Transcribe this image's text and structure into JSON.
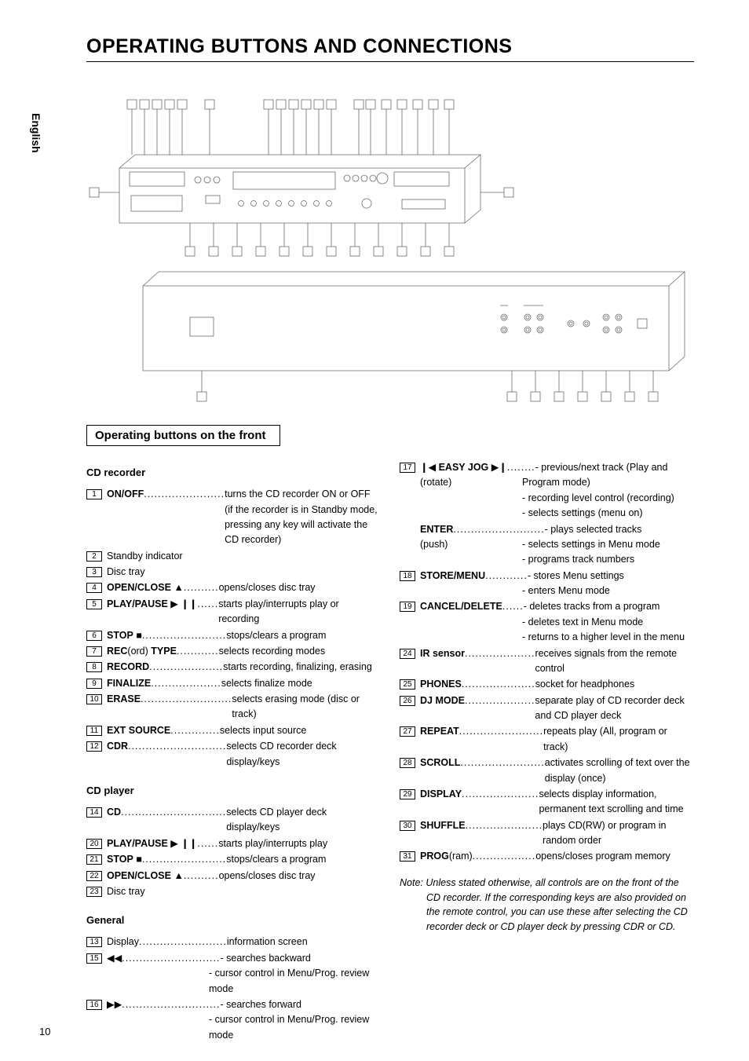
{
  "header": "OPERATING BUTTONS AND CONNECTIONS",
  "side_tab": "English",
  "section_heading": "Operating buttons on the front",
  "page_number": "10",
  "col_left": {
    "groups": [
      {
        "subhead": "CD recorder",
        "items": [
          {
            "n": "1",
            "label_html": "<b>ON/OFF</b>",
            "dots": ".......................",
            "desc": "turns the CD recorder ON or OFF (if the recorder is in Standby mode, pressing any key will activate the CD recorder)"
          },
          {
            "n": "2",
            "label_html": "Standby indicator",
            "dots": "",
            "desc": ""
          },
          {
            "n": "3",
            "label_html": "Disc tray",
            "dots": "",
            "desc": ""
          },
          {
            "n": "4",
            "label_html": "<b>OPEN/CLOSE</b> <span class='sym'>▲</span>",
            "dots": "..........",
            "desc": "opens/closes disc tray"
          },
          {
            "n": "5",
            "label_html": "<b>PLAY/PAUSE</b> <span class='sym'>▶ ❙❙</span>",
            "dots": "......",
            "desc": "starts play/interrupts play or recording"
          },
          {
            "n": "6",
            "label_html": "<b>STOP</b> <span class='sym'>■</span>",
            "dots": "........................",
            "desc": "stops/clears a program"
          },
          {
            "n": "7",
            "label_html": "<b>REC</b>(ord) <b>TYPE</b>",
            "dots": "............",
            "desc": "selects recording modes"
          },
          {
            "n": "8",
            "label_html": "<b>RECORD</b>",
            "dots": ".....................",
            "desc": "starts recording, finalizing, erasing"
          },
          {
            "n": "9",
            "label_html": "<b>FINALIZE</b>",
            "dots": "....................",
            "desc": "selects finalize mode"
          },
          {
            "n": "10",
            "label_html": "<b>ERASE</b>",
            "dots": "..........................",
            "desc": "selects erasing mode (disc or track)"
          },
          {
            "n": "11",
            "label_html": "<b>EXT SOURCE</b>",
            "dots": "..............",
            "desc": "selects input source"
          },
          {
            "n": "12",
            "label_html": "<b>CDR</b>",
            "dots": "............................",
            "desc": "selects CD recorder deck display/keys"
          }
        ]
      },
      {
        "subhead": "CD player",
        "items": [
          {
            "n": "14",
            "label_html": "<b>CD</b>",
            "dots": "..............................",
            "desc": "selects CD player deck display/keys"
          },
          {
            "n": "20",
            "label_html": "<b>PLAY/PAUSE</b> <span class='sym'>▶ ❙❙</span>",
            "dots": "......",
            "desc": "starts play/interrupts play"
          },
          {
            "n": "21",
            "label_html": "<b>STOP</b> <span class='sym'>■</span>",
            "dots": "........................",
            "desc": "stops/clears a program"
          },
          {
            "n": "22",
            "label_html": "<b>OPEN/CLOSE</b> <span class='sym'>▲</span>",
            "dots": "..........",
            "desc": "opens/closes disc tray"
          },
          {
            "n": "23",
            "label_html": "Disc tray",
            "dots": "",
            "desc": ""
          }
        ]
      },
      {
        "subhead": "General",
        "items": [
          {
            "n": "13",
            "label_html": "Display",
            "dots": ".........................",
            "desc": "information screen"
          },
          {
            "n": "15",
            "label_html": "<span class='sym'>◀◀</span>",
            "dots": "............................",
            "desc": "- searches backward",
            "cont": [
              "- cursor control in Menu/Prog. review mode"
            ]
          },
          {
            "n": "16",
            "label_html": "<span class='sym'>▶▶</span>",
            "dots": "............................",
            "desc": "- searches forward",
            "cont": [
              "- cursor control in Menu/Prog. review mode"
            ]
          }
        ]
      }
    ]
  },
  "col_right": {
    "items": [
      {
        "n": "17",
        "label_html": "<span class='sym'>❙◀</span> <b>EASY JOG</b> <span class='sym'>▶❙</span>",
        "dots": "........",
        "desc": "- previous/next track (Play and",
        "sub_label": "(rotate)",
        "cont_indent": [
          "Program mode)",
          "- recording level control (recording)",
          "- selects settings (menu on)"
        ]
      },
      {
        "n": "",
        "label_html": "<b>ENTER</b>",
        "dots": "..........................",
        "desc": "- plays selected tracks",
        "sub_label": "(push)",
        "cont_indent": [
          "- selects settings in Menu mode",
          "- programs track numbers"
        ]
      },
      {
        "n": "18",
        "label_html": "<b>STORE/MENU</b>",
        "dots": "............",
        "desc": "- stores Menu settings",
        "cont_indent": [
          "- enters Menu mode"
        ]
      },
      {
        "n": "19",
        "label_html": "<b>CANCEL/DELETE</b>",
        "dots": "......",
        "desc": "- deletes tracks from a program",
        "cont_indent": [
          "- deletes text in Menu mode",
          "- returns to a higher level in the menu"
        ]
      },
      {
        "n": "24",
        "label_html": "<b>IR sensor</b>",
        "dots": "....................",
        "desc": "receives signals from the remote control"
      },
      {
        "n": "25",
        "label_html": "<b>PHONES</b>",
        "dots": ".....................",
        "desc": "socket for headphones"
      },
      {
        "n": "26",
        "label_html": "<b>DJ MODE</b>",
        "dots": "....................",
        "desc": "separate play of CD recorder deck and CD player deck"
      },
      {
        "n": "27",
        "label_html": "<b>REPEAT</b>",
        "dots": "........................",
        "desc": "repeats play (All, program or track)"
      },
      {
        "n": "28",
        "label_html": "<b>SCROLL</b>",
        "dots": "........................",
        "desc": "activates scrolling of text over the display (once)"
      },
      {
        "n": "29",
        "label_html": "<b>DISPLAY</b>",
        "dots": "......................",
        "desc": "selects display information, permanent text scrolling and time"
      },
      {
        "n": "30",
        "label_html": "<b>SHUFFLE</b>",
        "dots": "......................",
        "desc": "plays CD(RW) or program in random order"
      },
      {
        "n": "31",
        "label_html": "<b>PROG</b>(ram)",
        "dots": "..................",
        "desc": "opens/closes program memory"
      }
    ],
    "note_lead": "Note:",
    "note": "Unless stated otherwise, all controls are on the front of the CD recorder. If the corresponding keys are also provided on the remote control, you can use these after selecting the CD recorder deck or CD player deck by pressing CDR or CD."
  },
  "diagram": {
    "top_callouts": 19,
    "bottom_front_callouts": 12,
    "bottom_back_right_callouts": 7,
    "stroke": "#6b6b6b",
    "stroke_width": 0.8
  }
}
